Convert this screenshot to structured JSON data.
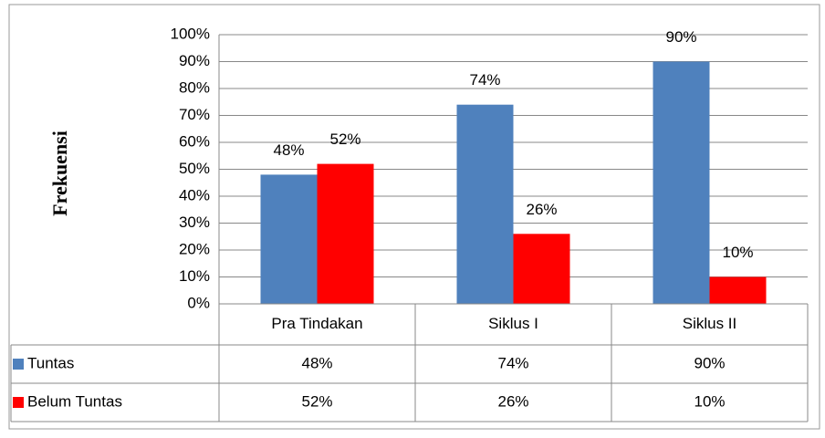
{
  "chart_data": {
    "type": "bar",
    "y_axis_label": "Frekuensi",
    "categories": [
      "Pra Tindakan",
      "Siklus I",
      "Siklus II"
    ],
    "series": [
      {
        "name": "Tuntas",
        "color": "#4f81bd",
        "values": [
          48,
          74,
          90
        ],
        "value_labels": [
          "48%",
          "74%",
          "90%"
        ]
      },
      {
        "name": "Belum Tuntas",
        "color": "#ff0000",
        "values": [
          52,
          26,
          10
        ],
        "value_labels": [
          "52%",
          "26%",
          "10%"
        ]
      }
    ],
    "ylim": [
      0,
      100
    ],
    "yticks": [
      {
        "value": 0,
        "label": "0%"
      },
      {
        "value": 10,
        "label": "10%"
      },
      {
        "value": 20,
        "label": "20%"
      },
      {
        "value": 30,
        "label": "30%"
      },
      {
        "value": 40,
        "label": "40%"
      },
      {
        "value": 50,
        "label": "50%"
      },
      {
        "value": 60,
        "label": "60%"
      },
      {
        "value": 70,
        "label": "70%"
      },
      {
        "value": 80,
        "label": "80%"
      },
      {
        "value": 90,
        "label": "90%"
      },
      {
        "value": 100,
        "label": "100%"
      }
    ],
    "grid": true,
    "data_table": true
  }
}
